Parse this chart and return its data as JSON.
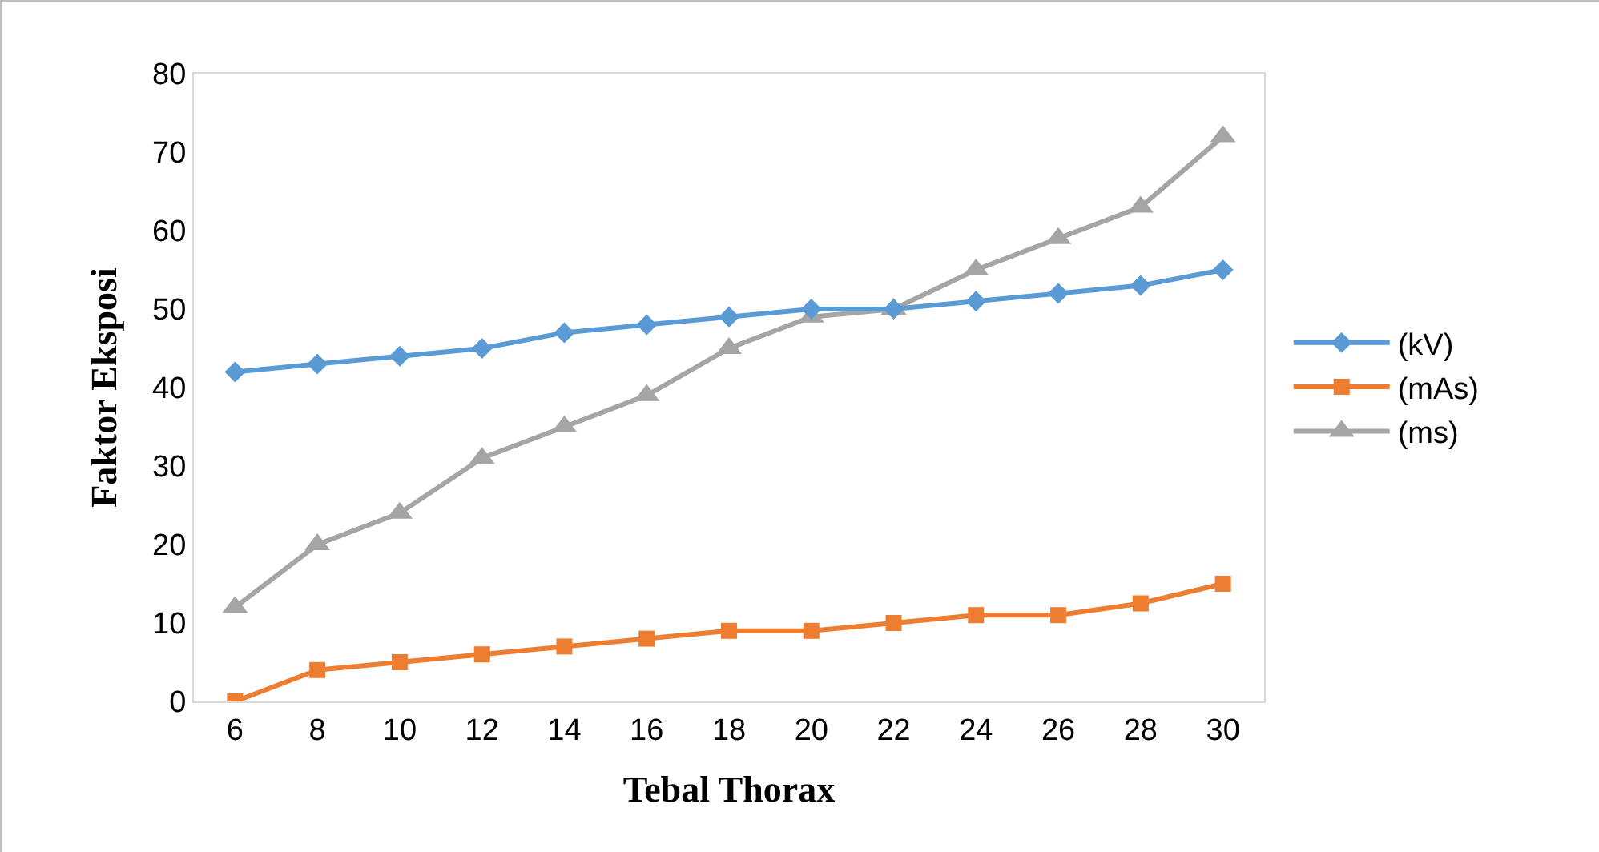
{
  "chart_data": {
    "type": "line",
    "xlabel": "Tebal Thorax",
    "ylabel": "Faktor Eksposi",
    "categories": [
      "6",
      "8",
      "10",
      "12",
      "14",
      "16",
      "18",
      "20",
      "22",
      "24",
      "26",
      "28",
      "30"
    ],
    "series": [
      {
        "name": "(kV)",
        "color": "#5b9bd5",
        "marker": "diamond",
        "values": [
          42,
          43,
          44,
          45,
          47,
          48,
          49,
          50,
          50,
          51,
          52,
          53,
          55
        ]
      },
      {
        "name": "(mAs)",
        "color": "#ed7d31",
        "marker": "square",
        "values": [
          0,
          4,
          5,
          6,
          7,
          8,
          9,
          9,
          10,
          11,
          11,
          12.5,
          15
        ]
      },
      {
        "name": "(ms)",
        "color": "#a5a5a5",
        "marker": "triangle",
        "values": [
          12,
          20,
          24,
          31,
          35,
          39,
          45,
          49,
          50,
          55,
          59,
          63,
          72
        ]
      }
    ],
    "ylim": [
      0,
      80
    ],
    "yticks": [
      0,
      10,
      20,
      30,
      40,
      50,
      60,
      70,
      80
    ],
    "grid": false,
    "legend": "right",
    "line_style": "solid"
  }
}
